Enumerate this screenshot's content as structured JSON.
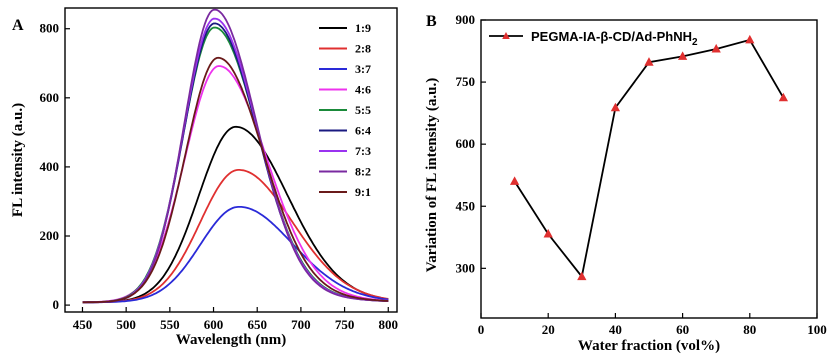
{
  "chart_data": [
    {
      "type": "line",
      "panel_label": "A",
      "xlabel": "Wavelength (nm)",
      "ylabel": "FL intensity (a.u.)",
      "xlim": [
        430,
        810
      ],
      "ylim": [
        -20,
        860
      ],
      "xticks": [
        450,
        500,
        550,
        600,
        650,
        700,
        750,
        800
      ],
      "yticks": [
        0,
        200,
        400,
        600,
        800
      ],
      "legend_position": "top-right",
      "series": [
        {
          "name": "1:9",
          "color": "#000000",
          "peak_x": 625,
          "peak_y": 510,
          "width": 68,
          "base_y": 8
        },
        {
          "name": "2:8",
          "color": "#e03030",
          "peak_x": 628,
          "peak_y": 385,
          "width": 70,
          "base_y": 8
        },
        {
          "name": "3:7",
          "color": "#2a2ad8",
          "peak_x": 628,
          "peak_y": 278,
          "width": 70,
          "base_y": 8
        },
        {
          "name": "4:6",
          "color": "#ee33ee",
          "peak_x": 606,
          "peak_y": 688,
          "width": 63,
          "base_y": 8
        },
        {
          "name": "5:5",
          "color": "#1a8a3a",
          "peak_x": 601,
          "peak_y": 800,
          "width": 58,
          "base_y": 8
        },
        {
          "name": "6:4",
          "color": "#1a1a80",
          "peak_x": 601,
          "peak_y": 812,
          "width": 57,
          "base_y": 8
        },
        {
          "name": "7:3",
          "color": "#9a33f0",
          "peak_x": 601,
          "peak_y": 826,
          "width": 57,
          "base_y": 8
        },
        {
          "name": "8:2",
          "color": "#7a2aa0",
          "peak_x": 601,
          "peak_y": 852,
          "width": 56,
          "base_y": 8
        },
        {
          "name": "9:1",
          "color": "#6a1a1a",
          "peak_x": 605,
          "peak_y": 712,
          "width": 60,
          "base_y": 8
        }
      ]
    },
    {
      "type": "line",
      "panel_label": "B",
      "xlabel": "Water fraction (vol%)",
      "ylabel": "Variation of FL intensity (a.u.)",
      "xlim": [
        0,
        100
      ],
      "ylim": [
        180,
        900
      ],
      "xticks": [
        0,
        20,
        40,
        60,
        80,
        100
      ],
      "yticks": [
        300,
        450,
        600,
        750,
        900
      ],
      "legend_position": "top-left",
      "series": [
        {
          "name": "PEGMA-IA-β-CD/Ad-PhNH2",
          "line_color": "#000000",
          "marker_color": "#e03030",
          "x": [
            10,
            20,
            30,
            40,
            50,
            60,
            70,
            80,
            90
          ],
          "y": [
            510,
            383,
            280,
            688,
            798,
            812,
            830,
            852,
            712
          ]
        }
      ]
    }
  ]
}
